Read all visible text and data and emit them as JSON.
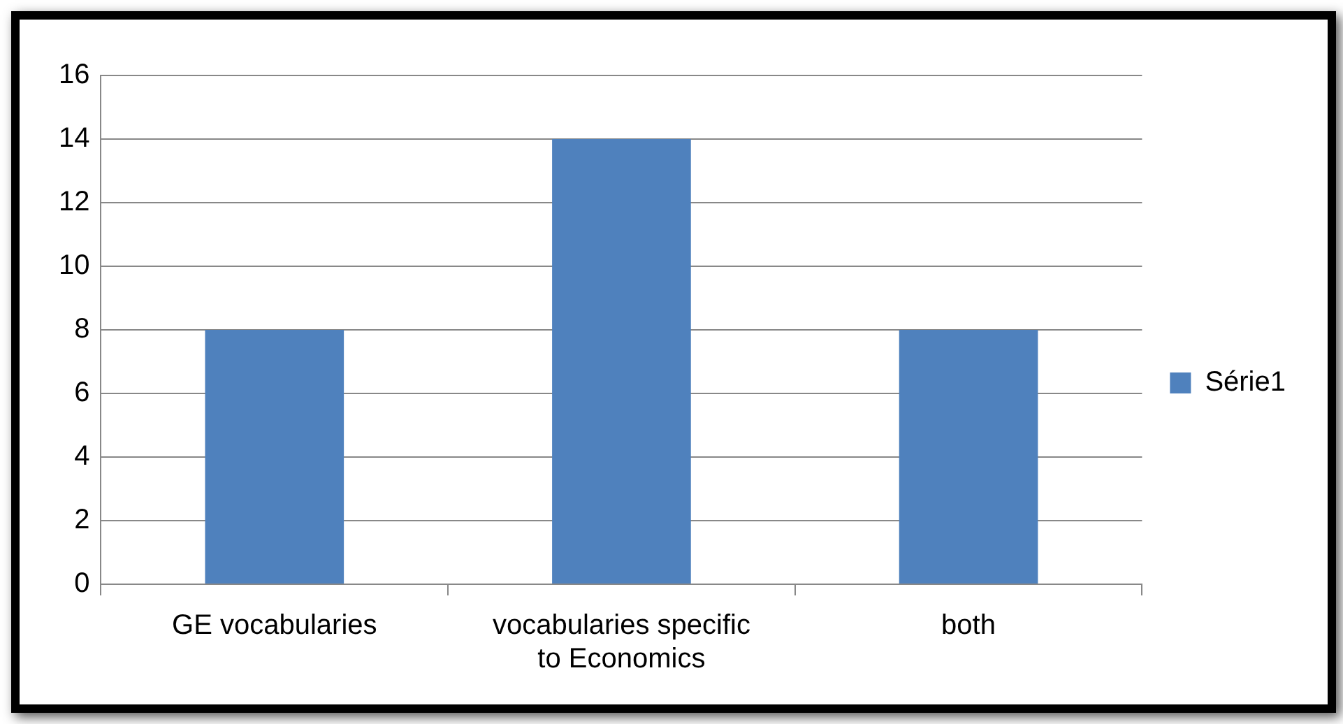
{
  "chart_data": {
    "type": "bar",
    "categories": [
      "GE vocabularies",
      "vocabularies specific to Economics",
      "both"
    ],
    "series": [
      {
        "name": "Série1",
        "color": "#4f81bd",
        "values": [
          8,
          14,
          8
        ]
      }
    ],
    "ylim": [
      0,
      16
    ],
    "yticks": [
      0,
      2,
      4,
      6,
      8,
      10,
      12,
      14,
      16
    ],
    "grid": "y",
    "legend": "right"
  }
}
